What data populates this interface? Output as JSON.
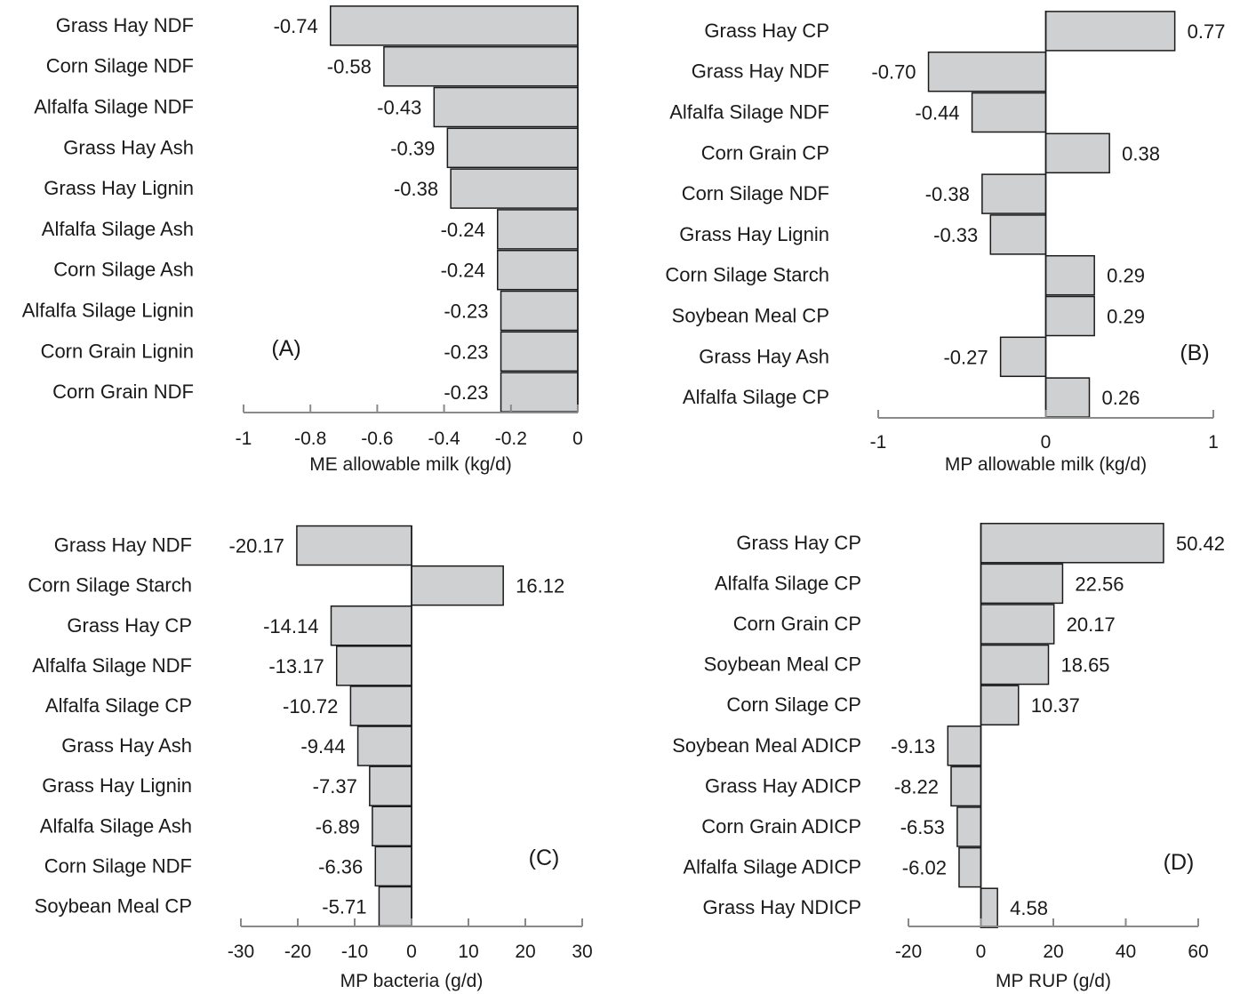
{
  "chart_data": [
    {
      "type": "bar",
      "orientation": "horizontal",
      "panel_label": "(A)",
      "xlabel": "ME allowable milk (kg/d)",
      "xlim": [
        -1,
        0
      ],
      "xticks": [
        -1,
        -0.8,
        -0.6,
        -0.4,
        -0.2,
        0
      ],
      "xtick_labels": [
        "-1",
        "-0.8",
        "-0.6",
        "-0.4",
        "-0.2",
        "0"
      ],
      "categories": [
        "Grass Hay NDF",
        "Corn Silage NDF",
        "Alfalfa Silage NDF",
        "Grass Hay Ash",
        "Grass Hay Lignin",
        "Alfalfa Silage Ash",
        "Corn Silage Ash",
        "Alfalfa Silage Lignin",
        "Corn Grain Lignin",
        "Corn Grain NDF"
      ],
      "values": [
        -0.74,
        -0.58,
        -0.43,
        -0.39,
        -0.38,
        -0.24,
        -0.24,
        -0.23,
        -0.23,
        -0.23
      ],
      "value_labels": [
        "-0.74",
        "-0.58",
        "-0.43",
        "-0.39",
        "-0.38",
        "-0.24",
        "-0.24",
        "-0.23",
        "-0.23",
        "-0.23"
      ]
    },
    {
      "type": "bar",
      "orientation": "horizontal",
      "panel_label": "(B)",
      "xlabel": "MP allowable milk (kg/d)",
      "xlim": [
        -1,
        1
      ],
      "xticks": [
        -1,
        0,
        1
      ],
      "xtick_labels": [
        "-1",
        "0",
        "1"
      ],
      "categories": [
        "Grass Hay CP",
        "Grass Hay NDF",
        "Alfalfa Silage NDF",
        "Corn Grain CP",
        "Corn Silage NDF",
        "Grass Hay Lignin",
        "Corn Silage Starch",
        "Soybean Meal CP",
        "Grass Hay Ash",
        "Alfalfa Silage CP"
      ],
      "values": [
        0.77,
        -0.7,
        -0.44,
        0.38,
        -0.38,
        -0.33,
        0.29,
        0.29,
        -0.27,
        0.26
      ],
      "value_labels": [
        "0.77",
        "-0.70",
        "-0.44",
        "0.38",
        "-0.38",
        "-0.33",
        "0.29",
        "0.29",
        "-0.27",
        "0.26"
      ]
    },
    {
      "type": "bar",
      "orientation": "horizontal",
      "panel_label": "(C)",
      "xlabel": "MP bacteria (g/d)",
      "xlim": [
        -30,
        30
      ],
      "xticks": [
        -30,
        -20,
        -10,
        0,
        10,
        20,
        30
      ],
      "xtick_labels": [
        "-30",
        "-20",
        "-10",
        "0",
        "10",
        "20",
        "30"
      ],
      "categories": [
        "Grass Hay NDF",
        "Corn Silage Starch",
        "Grass Hay CP",
        "Alfalfa Silage NDF",
        "Alfalfa Silage CP",
        "Grass Hay Ash",
        "Grass Hay Lignin",
        "Alfalfa Silage Ash",
        "Corn Silage NDF",
        "Soybean Meal CP"
      ],
      "values": [
        -20.17,
        16.12,
        -14.14,
        -13.17,
        -10.72,
        -9.44,
        -7.37,
        -6.89,
        -6.36,
        -5.71
      ],
      "value_labels": [
        "-20.17",
        "16.12",
        "-14.14",
        "-13.17",
        "-10.72",
        "-9.44",
        "-7.37",
        "-6.89",
        "-6.36",
        "-5.71"
      ]
    },
    {
      "type": "bar",
      "orientation": "horizontal",
      "panel_label": "(D)",
      "xlabel": "MP RUP (g/d)",
      "xlim": [
        -20,
        60
      ],
      "xticks": [
        -20,
        0,
        20,
        40,
        60
      ],
      "xtick_labels": [
        "-20",
        "0",
        "20",
        "40",
        "60"
      ],
      "categories": [
        "Grass Hay CP",
        "Alfalfa Silage CP",
        "Corn Grain CP",
        "Soybean Meal CP",
        "Corn Silage CP",
        "Soybean Meal ADICP",
        "Grass Hay ADICP",
        "Corn Grain ADICP",
        "Alfalfa Silage ADICP",
        "Grass Hay NDICP"
      ],
      "values": [
        50.42,
        22.56,
        20.17,
        18.65,
        10.37,
        -9.13,
        -8.22,
        -6.53,
        -6.02,
        4.58
      ],
      "value_labels": [
        "50.42",
        "22.56",
        "20.17",
        "18.65",
        "10.37",
        "-9.13",
        "-8.22",
        "-6.53",
        "-6.02",
        "4.58"
      ]
    }
  ],
  "colors": {
    "bar_fill": "#cfd0d2",
    "bar_stroke": "#1a1a1a",
    "axis": "#8a8a8a",
    "text": "#1a1a1a"
  }
}
